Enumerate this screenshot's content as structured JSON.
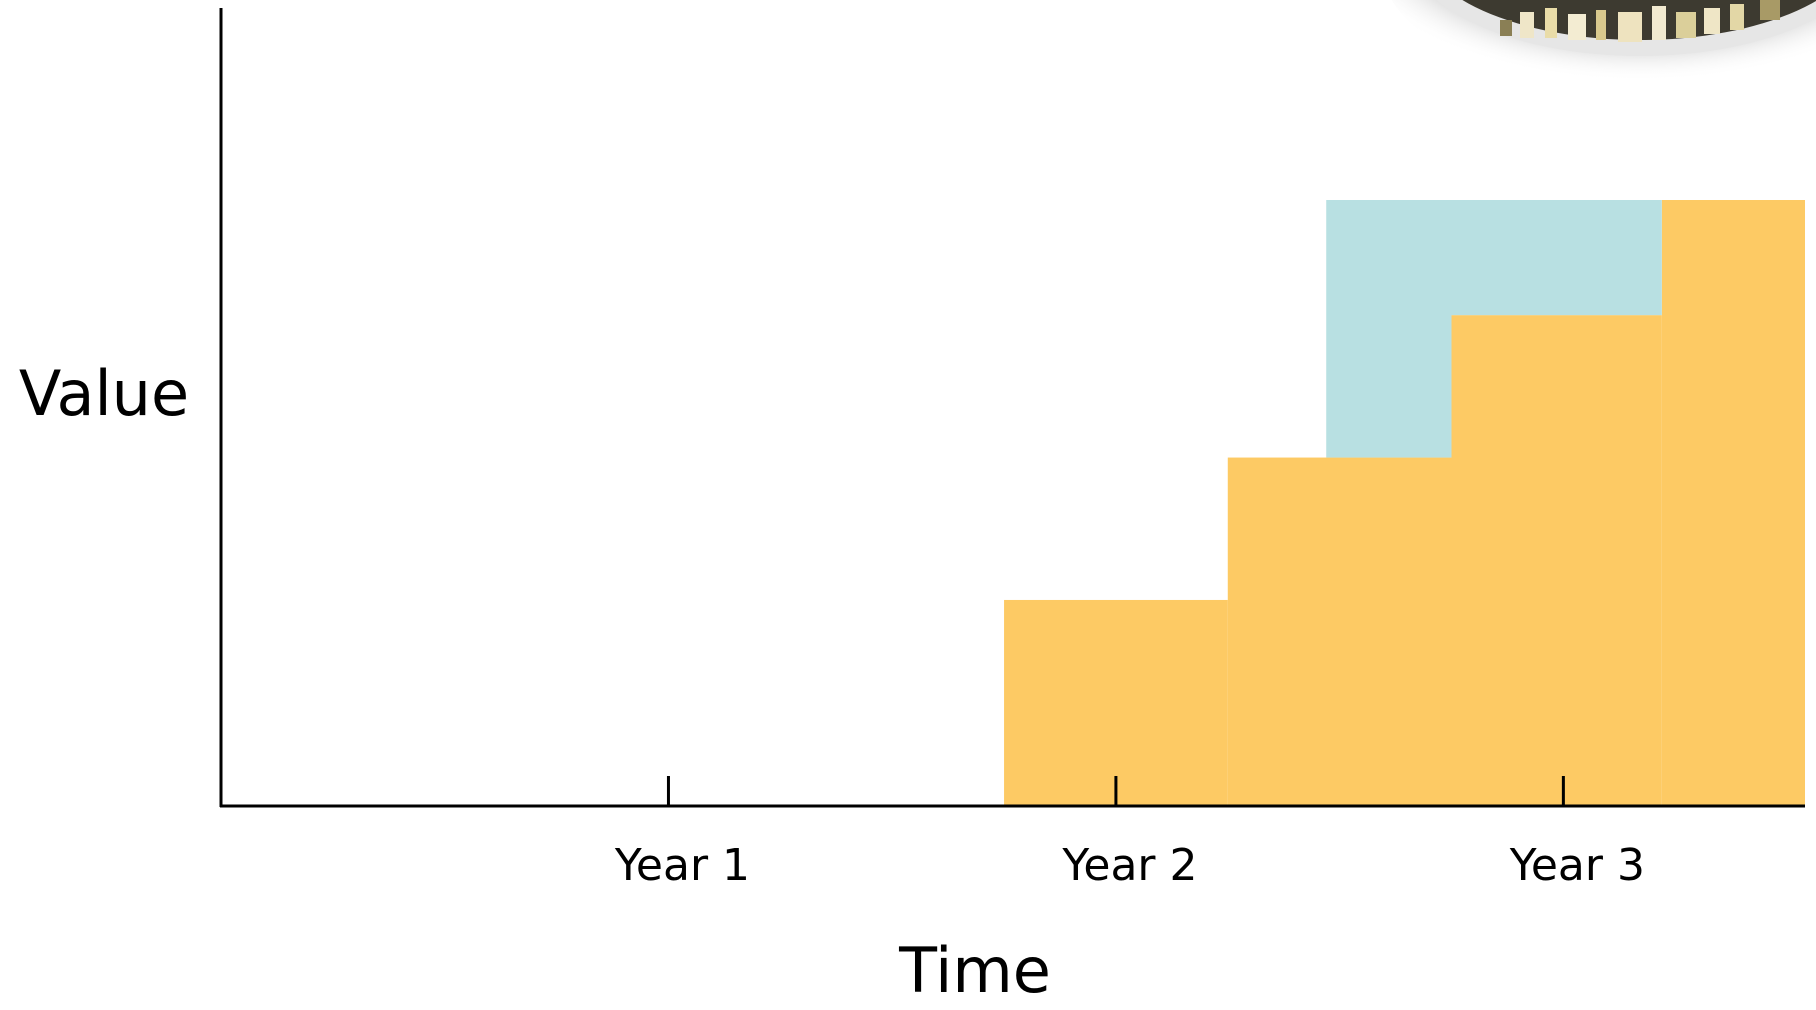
{
  "chart_data": {
    "type": "area",
    "xlabel": "Time",
    "ylabel": "Value",
    "x_ticks": [
      {
        "label": "Year 1",
        "value": 1
      },
      {
        "label": "Year 2",
        "value": 2
      },
      {
        "label": "Year 3",
        "value": 3
      }
    ],
    "xlim": [
      0,
      3.54
    ],
    "ylim": [
      0,
      10
    ],
    "grid": false,
    "legend": "none",
    "colors": {
      "stepped_value": "#FDCA64",
      "gap": "#B8E0E2",
      "axis": "#000000"
    },
    "series": [
      {
        "step_points": [
          {
            "x": 1.75,
            "y": 3.4
          },
          {
            "x": 2.25,
            "y": 5.75
          },
          {
            "x": 2.75,
            "y": 8.1
          },
          {
            "x": 3.22,
            "y": 10
          }
        ],
        "x_end": 3.54
      },
      {
        "band": [
          {
            "x_start": 2.47,
            "x_end": 2.75,
            "y_low": 5.75,
            "y_high": 10
          },
          {
            "x_start": 2.75,
            "x_end": 3.22,
            "y_low": 8.1,
            "y_high": 10
          }
        ]
      }
    ]
  }
}
